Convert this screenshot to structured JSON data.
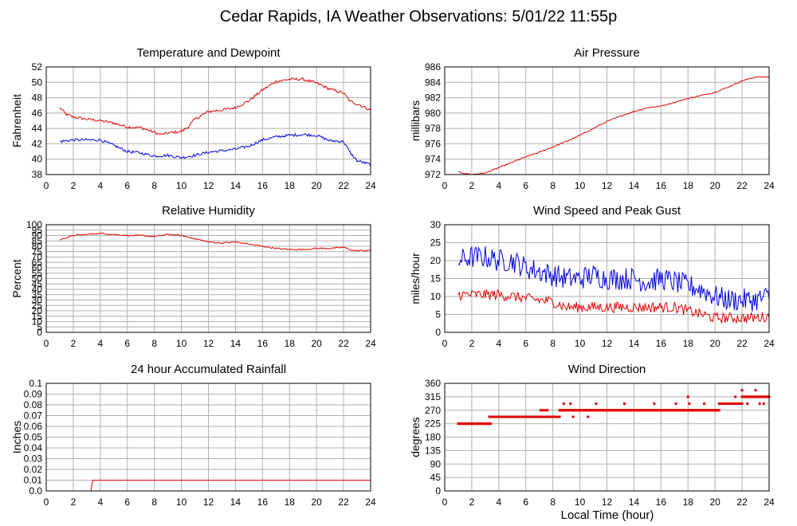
{
  "page": {
    "title": "Cedar Rapids, IA Weather Observations: 5/01/22 11:55p",
    "xlabel": "Local Time (hour)"
  },
  "colors": {
    "red": "#e00000",
    "blue": "#0000e0",
    "grid": "#b0b0b0"
  },
  "chart_data": [
    {
      "id": "temp",
      "type": "line",
      "title": "Temperature and Dewpoint",
      "ylabel": "Fahrenheit",
      "xlim": [
        0,
        24
      ],
      "xticks": [
        0,
        2,
        4,
        6,
        8,
        10,
        12,
        14,
        16,
        18,
        20,
        22,
        24
      ],
      "ylim": [
        38,
        52
      ],
      "yticks": [
        38,
        40,
        42,
        44,
        46,
        48,
        50,
        52
      ],
      "grid": true,
      "series": [
        {
          "color": "#e00000",
          "noise": 0.18,
          "points": [
            [
              1,
              46.7
            ],
            [
              1.5,
              45.8
            ],
            [
              2,
              45.5
            ],
            [
              3,
              45.2
            ],
            [
              4,
              45.0
            ],
            [
              5,
              44.7
            ],
            [
              6,
              44.2
            ],
            [
              7,
              44.1
            ],
            [
              8,
              43.5
            ],
            [
              8.5,
              43.2
            ],
            [
              9,
              43.4
            ],
            [
              10,
              43.6
            ],
            [
              10.5,
              44.2
            ],
            [
              11,
              45.2
            ],
            [
              12,
              46.2
            ],
            [
              13,
              46.4
            ],
            [
              14,
              46.7
            ],
            [
              15,
              47.6
            ],
            [
              16,
              49.0
            ],
            [
              17,
              50.1
            ],
            [
              18,
              50.4
            ],
            [
              19,
              50.4
            ],
            [
              20,
              49.9
            ],
            [
              21,
              49.1
            ],
            [
              22,
              48.6
            ],
            [
              22.5,
              47.5
            ],
            [
              23,
              47.2
            ],
            [
              24,
              46.4
            ]
          ]
        },
        {
          "color": "#0000e0",
          "noise": 0.18,
          "points": [
            [
              1,
              42.3
            ],
            [
              2,
              42.5
            ],
            [
              3,
              42.5
            ],
            [
              4,
              42.5
            ],
            [
              5,
              41.8
            ],
            [
              6,
              41.0
            ],
            [
              7,
              40.8
            ],
            [
              8,
              40.4
            ],
            [
              9,
              40.5
            ],
            [
              10,
              40.2
            ],
            [
              11,
              40.5
            ],
            [
              12,
              40.9
            ],
            [
              13,
              41.1
            ],
            [
              14,
              41.3
            ],
            [
              15,
              41.7
            ],
            [
              16,
              42.5
            ],
            [
              17,
              42.9
            ],
            [
              18,
              43.1
            ],
            [
              19,
              43.2
            ],
            [
              20,
              43.1
            ],
            [
              21,
              42.4
            ],
            [
              22,
              42.3
            ],
            [
              22.5,
              40.8
            ],
            [
              23,
              39.8
            ],
            [
              24,
              39.3
            ]
          ]
        }
      ]
    },
    {
      "id": "pressure",
      "type": "line",
      "title": "Air Pressure",
      "ylabel": "millibars",
      "xlim": [
        0,
        24
      ],
      "xticks": [
        0,
        2,
        4,
        6,
        8,
        10,
        12,
        14,
        16,
        18,
        20,
        22,
        24
      ],
      "ylim": [
        972,
        986
      ],
      "yticks": [
        972,
        974,
        976,
        978,
        980,
        982,
        984,
        986
      ],
      "grid": true,
      "series": [
        {
          "color": "#e00000",
          "noise": 0.07,
          "points": [
            [
              1,
              972.3
            ],
            [
              2,
              972.0
            ],
            [
              3,
              972.2
            ],
            [
              4,
              972.9
            ],
            [
              5,
              973.6
            ],
            [
              6,
              974.3
            ],
            [
              7,
              974.9
            ],
            [
              8,
              975.6
            ],
            [
              9,
              976.3
            ],
            [
              10,
              977.1
            ],
            [
              11,
              978.0
            ],
            [
              12,
              978.9
            ],
            [
              13,
              979.6
            ],
            [
              14,
              980.2
            ],
            [
              15,
              980.7
            ],
            [
              16,
              980.9
            ],
            [
              17,
              981.4
            ],
            [
              18,
              981.9
            ],
            [
              19,
              982.3
            ],
            [
              20,
              982.7
            ],
            [
              21,
              983.4
            ],
            [
              22,
              984.2
            ],
            [
              23,
              984.7
            ],
            [
              24,
              984.7
            ]
          ]
        }
      ]
    },
    {
      "id": "humidity",
      "type": "line",
      "title": "Relative Humidity",
      "ylabel": "Percent",
      "xlim": [
        0,
        24
      ],
      "xticks": [
        0,
        2,
        4,
        6,
        8,
        10,
        12,
        14,
        16,
        18,
        20,
        22,
        24
      ],
      "ylim": [
        0,
        100
      ],
      "yticks": [
        0,
        5,
        10,
        15,
        20,
        25,
        30,
        35,
        40,
        45,
        50,
        55,
        60,
        65,
        70,
        75,
        80,
        85,
        90,
        95,
        100
      ],
      "grid": true,
      "series": [
        {
          "color": "#e00000",
          "noise": 0.6,
          "points": [
            [
              1,
              86
            ],
            [
              2,
              90
            ],
            [
              3,
              91
            ],
            [
              4,
              92
            ],
            [
              5,
              91
            ],
            [
              6,
              90
            ],
            [
              7,
              90
            ],
            [
              8,
              89
            ],
            [
              9,
              91
            ],
            [
              10,
              90
            ],
            [
              11,
              87
            ],
            [
              12,
              84
            ],
            [
              13,
              83
            ],
            [
              14,
              84
            ],
            [
              15,
              82
            ],
            [
              16,
              80
            ],
            [
              17,
              78
            ],
            [
              18,
              77
            ],
            [
              19,
              77
            ],
            [
              20,
              78
            ],
            [
              21,
              78
            ],
            [
              22,
              79
            ],
            [
              22.7,
              76
            ],
            [
              24,
              76
            ]
          ]
        }
      ]
    },
    {
      "id": "wind",
      "type": "line",
      "title": "Wind Speed and Peak Gust",
      "ylabel": "miles/hour",
      "xlim": [
        0,
        24
      ],
      "xticks": [
        0,
        2,
        4,
        6,
        8,
        10,
        12,
        14,
        16,
        18,
        20,
        22,
        24
      ],
      "ylim": [
        0,
        30
      ],
      "yticks": [
        0,
        5,
        10,
        15,
        20,
        25,
        30
      ],
      "grid": true,
      "series": [
        {
          "color": "#0000e0",
          "noise": 3.2,
          "points": [
            [
              1,
              20
            ],
            [
              2,
              21
            ],
            [
              3,
              21
            ],
            [
              4,
              20
            ],
            [
              5,
              20
            ],
            [
              6,
              18
            ],
            [
              7,
              17
            ],
            [
              8,
              16
            ],
            [
              9,
              15
            ],
            [
              10,
              15
            ],
            [
              11,
              16
            ],
            [
              12,
              15
            ],
            [
              13,
              15
            ],
            [
              14,
              15
            ],
            [
              15,
              14
            ],
            [
              16,
              15
            ],
            [
              17,
              14
            ],
            [
              18,
              13
            ],
            [
              19,
              12
            ],
            [
              20,
              10
            ],
            [
              21,
              9
            ],
            [
              22,
              9
            ],
            [
              23,
              9
            ],
            [
              24,
              10
            ]
          ]
        },
        {
          "color": "#e00000",
          "noise": 1.5,
          "points": [
            [
              1,
              10.5
            ],
            [
              2,
              10.5
            ],
            [
              3,
              10.5
            ],
            [
              4,
              10.5
            ],
            [
              5,
              10
            ],
            [
              6,
              9.5
            ],
            [
              7,
              9
            ],
            [
              8,
              8.5
            ],
            [
              9,
              7
            ],
            [
              10,
              7
            ],
            [
              11,
              7
            ],
            [
              12,
              7
            ],
            [
              13,
              7
            ],
            [
              14,
              7
            ],
            [
              15,
              7
            ],
            [
              16,
              7
            ],
            [
              17,
              7
            ],
            [
              18,
              6
            ],
            [
              19,
              5
            ],
            [
              20,
              4
            ],
            [
              21,
              4
            ],
            [
              22,
              4
            ],
            [
              23,
              4
            ],
            [
              24,
              4.5
            ]
          ]
        }
      ]
    },
    {
      "id": "rain",
      "type": "line",
      "title": "24 hour Accumulated Rainfall",
      "ylabel": "Inches",
      "xlim": [
        0,
        24
      ],
      "xticks": [
        0,
        2,
        4,
        6,
        8,
        10,
        12,
        14,
        16,
        18,
        20,
        22,
        24
      ],
      "ylim": [
        0,
        0.1
      ],
      "yticks": [
        0.0,
        0.01,
        0.02,
        0.03,
        0.04,
        0.05,
        0.06,
        0.07,
        0.08,
        0.09,
        0.1
      ],
      "ytick_labels": [
        "0.0",
        "0.01",
        "0.02",
        "0.03",
        "0.04",
        "0.05",
        "0.06",
        "0.07",
        "0.08",
        "0.09",
        "0.1"
      ],
      "grid": true,
      "series": [
        {
          "color": "#e00000",
          "noise": 0,
          "points": [
            [
              1,
              0
            ],
            [
              3.3,
              0
            ],
            [
              3.45,
              0.01
            ],
            [
              24,
              0.01
            ]
          ]
        }
      ]
    },
    {
      "id": "direction",
      "type": "scatter",
      "title": "Wind Direction",
      "ylabel": "degrees",
      "xlim": [
        0,
        24
      ],
      "xticks": [
        0,
        2,
        4,
        6,
        8,
        10,
        12,
        14,
        16,
        18,
        20,
        22,
        24
      ],
      "ylim": [
        0,
        360
      ],
      "yticks": [
        0,
        45,
        90,
        135,
        180,
        225,
        270,
        315,
        360
      ],
      "grid": true,
      "series": [
        {
          "color": "#e00000",
          "segments": [
            [
              1,
              3.4,
              225
            ],
            [
              3.4,
              7.5,
              248
            ],
            [
              7.1,
              7.6,
              270
            ],
            [
              7.6,
              8.5,
              248
            ],
            [
              8.5,
              13.5,
              270
            ],
            [
              13.5,
              18.3,
              270
            ],
            [
              18.3,
              20.3,
              270
            ],
            [
              20.3,
              22,
              292
            ],
            [
              22,
              24,
              315
            ]
          ],
          "outliers": [
            [
              3.3,
              248
            ],
            [
              8.8,
              292
            ],
            [
              9.3,
              292
            ],
            [
              9.5,
              248
            ],
            [
              10.6,
              248
            ],
            [
              11.2,
              292
            ],
            [
              13.3,
              292
            ],
            [
              15.5,
              292
            ],
            [
              17.1,
              292
            ],
            [
              18.0,
              315
            ],
            [
              18.1,
              292
            ],
            [
              19.2,
              292
            ],
            [
              20.1,
              270
            ],
            [
              21.5,
              315
            ],
            [
              22.0,
              337
            ],
            [
              22.4,
              292
            ],
            [
              23.0,
              337
            ],
            [
              23.3,
              292
            ],
            [
              23.6,
              292
            ]
          ]
        }
      ]
    }
  ]
}
